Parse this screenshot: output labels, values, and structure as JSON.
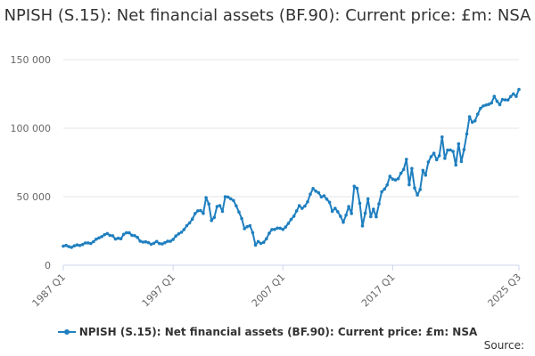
{
  "chart_data": {
    "type": "line",
    "title": "NPISH (S.15): Net financial assets (BF.90): Current price: £m: NSA",
    "xlabel": "",
    "ylabel": "",
    "ylim": [
      0,
      150000
    ],
    "y_ticks": [
      0,
      50000,
      100000,
      150000
    ],
    "y_tick_labels": [
      "0",
      "50 000",
      "100 000",
      "150 000"
    ],
    "x_ticks": [
      "1987 Q1",
      "1997 Q1",
      "2007 Q1",
      "2017 Q1",
      "2025 Q3"
    ],
    "start_period": "1987 Q1",
    "end_period": "2025 Q3",
    "series": [
      {
        "name": "NPISH (S.15): Net financial assets (BF.90): Current price: £m: NSA",
        "color": "#1f7fbf",
        "anchors": [
          [
            1987.0,
            13500
          ],
          [
            1987.5,
            13800
          ],
          [
            1988.0,
            14200
          ],
          [
            1988.5,
            14600
          ],
          [
            1989.0,
            15500
          ],
          [
            1989.5,
            16800
          ],
          [
            1990.0,
            18500
          ],
          [
            1990.5,
            21000
          ],
          [
            1991.0,
            22700
          ],
          [
            1991.5,
            22300
          ],
          [
            1991.75,
            18700
          ],
          [
            1992.25,
            19500
          ],
          [
            1992.5,
            22500
          ],
          [
            1993.0,
            24000
          ],
          [
            1993.5,
            21500
          ],
          [
            1994.0,
            17500
          ],
          [
            1994.5,
            16800
          ],
          [
            1995.0,
            16200
          ],
          [
            1995.5,
            16500
          ],
          [
            1995.75,
            15300
          ],
          [
            1996.25,
            16500
          ],
          [
            1996.75,
            18000
          ],
          [
            1997.5,
            22000
          ],
          [
            1998.0,
            26500
          ],
          [
            1998.5,
            31000
          ],
          [
            1999.0,
            37500
          ],
          [
            1999.5,
            39800
          ],
          [
            1999.75,
            38500
          ],
          [
            2000.0,
            49500
          ],
          [
            2000.25,
            44500
          ],
          [
            2000.5,
            33000
          ],
          [
            2000.75,
            35000
          ],
          [
            2001.0,
            42000
          ],
          [
            2001.25,
            43000
          ],
          [
            2001.5,
            40000
          ],
          [
            2001.75,
            50500
          ],
          [
            2002.0,
            49500
          ],
          [
            2002.5,
            47500
          ],
          [
            2003.0,
            38000
          ],
          [
            2003.25,
            34500
          ],
          [
            2003.5,
            27500
          ],
          [
            2004.0,
            28500
          ],
          [
            2004.25,
            24000
          ],
          [
            2004.5,
            14500
          ],
          [
            2004.75,
            16500
          ],
          [
            2005.0,
            16000
          ],
          [
            2005.5,
            19500
          ],
          [
            2006.0,
            26000
          ],
          [
            2006.5,
            26500
          ],
          [
            2007.0,
            27000
          ],
          [
            2007.5,
            30000
          ],
          [
            2008.0,
            36000
          ],
          [
            2008.5,
            43000
          ],
          [
            2008.75,
            42000
          ],
          [
            2009.25,
            46000
          ],
          [
            2009.75,
            56000
          ],
          [
            2010.25,
            52500
          ],
          [
            2010.5,
            50000
          ],
          [
            2010.75,
            51500
          ],
          [
            2011.25,
            45000
          ],
          [
            2011.5,
            39000
          ],
          [
            2011.75,
            42000
          ],
          [
            2012.0,
            39000
          ],
          [
            2012.5,
            32000
          ],
          [
            2013.0,
            42000
          ],
          [
            2013.25,
            37000
          ],
          [
            2013.5,
            58000
          ],
          [
            2013.75,
            56500
          ],
          [
            2014.0,
            45000
          ],
          [
            2014.25,
            29000
          ],
          [
            2014.75,
            48000
          ],
          [
            2015.0,
            34500
          ],
          [
            2015.25,
            41000
          ],
          [
            2015.5,
            36000
          ],
          [
            2016.0,
            53500
          ],
          [
            2016.5,
            58500
          ],
          [
            2016.75,
            64000
          ],
          [
            2017.0,
            62500
          ],
          [
            2017.5,
            63500
          ],
          [
            2018.0,
            70000
          ],
          [
            2018.25,
            77500
          ],
          [
            2018.5,
            58000
          ],
          [
            2018.75,
            70000
          ],
          [
            2019.0,
            57000
          ],
          [
            2019.25,
            52000
          ],
          [
            2019.5,
            55000
          ],
          [
            2019.75,
            69000
          ],
          [
            2020.0,
            66000
          ],
          [
            2020.25,
            75000
          ],
          [
            2020.75,
            82000
          ],
          [
            2021.0,
            78000
          ],
          [
            2021.25,
            80000
          ],
          [
            2021.5,
            93000
          ],
          [
            2021.75,
            78000
          ],
          [
            2022.0,
            84000
          ],
          [
            2022.5,
            83000
          ],
          [
            2022.75,
            74000
          ],
          [
            2023.0,
            89000
          ],
          [
            2023.25,
            75000
          ],
          [
            2023.5,
            84000
          ],
          [
            2024.0,
            108000
          ],
          [
            2024.25,
            104000
          ],
          [
            2024.5,
            106000
          ],
          [
            2024.75,
            111000
          ],
          [
            2025.0,
            114000
          ],
          [
            2025.5,
            117000
          ],
          [
            2026.0,
            118000
          ],
          [
            2026.25,
            123500
          ],
          [
            2026.5,
            120500
          ],
          [
            2026.75,
            117000
          ],
          [
            2027.0,
            120000
          ],
          [
            2027.5,
            121000
          ],
          [
            2027.75,
            123000
          ],
          [
            2028.0,
            125000
          ],
          [
            2028.25,
            124000
          ],
          [
            2028.5,
            128500
          ]
        ]
      }
    ]
  },
  "legend": {
    "label": "NPISH (S.15): Net financial assets (BF.90): Current price: £m: NSA"
  },
  "source": {
    "label": "Source:"
  }
}
